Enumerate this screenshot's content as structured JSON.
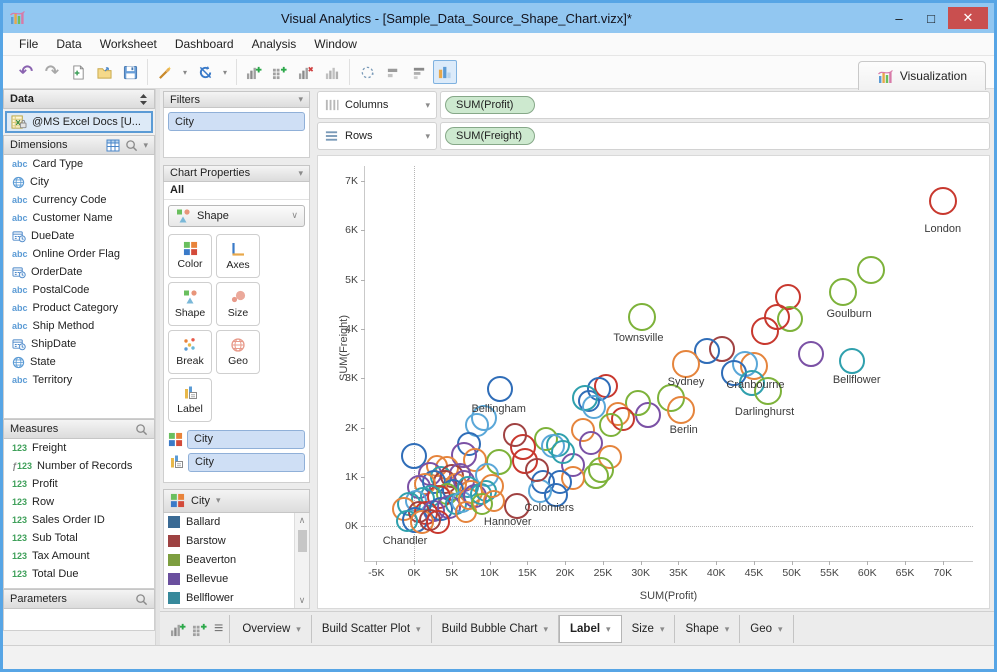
{
  "window": {
    "title": "Visual Analytics - [Sample_Data_Source_Shape_Chart.vizx]*",
    "controls": {
      "minimize": "–",
      "maximize": "□",
      "close": "✕"
    }
  },
  "menu": {
    "items": [
      "File",
      "Data",
      "Worksheet",
      "Dashboard",
      "Analysis",
      "Window"
    ]
  },
  "toolbar": {
    "groups": [
      [
        "undo",
        "redo",
        "new-file",
        "open-folder",
        "save"
      ],
      [
        "wand",
        "dd",
        "refresh",
        "dd"
      ],
      [
        "chart-add",
        "grid-add",
        "chart-remove",
        "chart-plain"
      ],
      [
        "lasso",
        "bars-h",
        "bars-h2",
        "chart-highlight"
      ]
    ],
    "visualization_tab": {
      "label": "Visualization"
    }
  },
  "sidebar": {
    "data_header": "Data",
    "source": {
      "label": "@MS Excel Docs [U..."
    },
    "dimensions": {
      "header": "Dimensions",
      "items": [
        {
          "icon": "abc",
          "label": "Card Type"
        },
        {
          "icon": "globe",
          "label": "City"
        },
        {
          "icon": "abc",
          "label": "Currency Code"
        },
        {
          "icon": "abc",
          "label": "Customer Name"
        },
        {
          "icon": "datetime",
          "label": "DueDate"
        },
        {
          "icon": "abc",
          "label": "Online Order Flag"
        },
        {
          "icon": "datetime",
          "label": "OrderDate"
        },
        {
          "icon": "abc",
          "label": "PostalCode"
        },
        {
          "icon": "abc",
          "label": "Product Category"
        },
        {
          "icon": "abc",
          "label": "Ship Method"
        },
        {
          "icon": "datetime",
          "label": "ShipDate"
        },
        {
          "icon": "globe",
          "label": "State"
        },
        {
          "icon": "abc",
          "label": "Territory"
        }
      ]
    },
    "measures": {
      "header": "Measures",
      "items": [
        {
          "icon": "n123",
          "label": "Freight"
        },
        {
          "icon": "f123",
          "label": "Number of Records"
        },
        {
          "icon": "n123",
          "label": "Profit"
        },
        {
          "icon": "n123",
          "label": "Row"
        },
        {
          "icon": "n123",
          "label": "Sales Order ID"
        },
        {
          "icon": "n123",
          "label": "Sub Total"
        },
        {
          "icon": "n123",
          "label": "Tax Amount"
        },
        {
          "icon": "n123",
          "label": "Total Due"
        }
      ]
    },
    "parameters": {
      "header": "Parameters"
    }
  },
  "panel2": {
    "filters": {
      "header": "Filters",
      "chips": [
        "City"
      ]
    },
    "chart_properties": {
      "header": "Chart Properties",
      "scope": "All",
      "selector": {
        "icon": "shape",
        "label": "Shape"
      },
      "buttons": [
        {
          "icon": "color",
          "label": "Color"
        },
        {
          "icon": "axes",
          "label": "Axes"
        },
        {
          "icon": "shape",
          "label": "Shape"
        },
        {
          "icon": "size",
          "label": "Size"
        },
        {
          "icon": "break",
          "label": "Break"
        },
        {
          "icon": "geo",
          "label": "Geo"
        },
        {
          "icon": "label",
          "label": "Label"
        }
      ],
      "assignments": [
        {
          "icon": "color",
          "chip": "City"
        },
        {
          "icon": "label",
          "chip": "City"
        }
      ]
    },
    "legend": {
      "title": "City",
      "items": [
        {
          "color": "#3a6a94",
          "label": "Ballard"
        },
        {
          "color": "#9e4242",
          "label": "Barstow"
        },
        {
          "color": "#7d9e3f",
          "label": "Beaverton"
        },
        {
          "color": "#6a4f9e",
          "label": "Bellevue"
        },
        {
          "color": "#37899b",
          "label": "Bellflower"
        },
        {
          "color": "#d9813f",
          "label": "Bellingham"
        }
      ]
    }
  },
  "shelves": {
    "columns": {
      "label": "Columns",
      "pill": "SUM(Profit)"
    },
    "rows": {
      "label": "Rows",
      "pill": "SUM(Freight)"
    }
  },
  "chart_data": {
    "type": "scatter",
    "xlabel": "SUM(Profit)",
    "ylabel": "SUM(Freight)",
    "xlim": [
      -6.5,
      74
    ],
    "ylim": [
      -0.7,
      7.3
    ],
    "x_unit": "thousands",
    "y_unit": "thousands",
    "xticks": [
      {
        "v": -5,
        "t": "-5K"
      },
      {
        "v": 0,
        "t": "0K"
      },
      {
        "v": 5,
        "t": "5K"
      },
      {
        "v": 10,
        "t": "10K"
      },
      {
        "v": 15,
        "t": "15K"
      },
      {
        "v": 20,
        "t": "20K"
      },
      {
        "v": 25,
        "t": "25K"
      },
      {
        "v": 30,
        "t": "30K"
      },
      {
        "v": 35,
        "t": "35K"
      },
      {
        "v": 40,
        "t": "40K"
      },
      {
        "v": 45,
        "t": "45K"
      },
      {
        "v": 50,
        "t": "50K"
      },
      {
        "v": 55,
        "t": "55K"
      },
      {
        "v": 60,
        "t": "60K"
      },
      {
        "v": 65,
        "t": "65K"
      },
      {
        "v": 70,
        "t": "70K"
      }
    ],
    "yticks": [
      {
        "v": 0,
        "t": "0K"
      },
      {
        "v": 1,
        "t": "1K"
      },
      {
        "v": 2,
        "t": "2K"
      },
      {
        "v": 3,
        "t": "3K"
      },
      {
        "v": 4,
        "t": "4K"
      },
      {
        "v": 5,
        "t": "5K"
      },
      {
        "v": 6,
        "t": "6K"
      },
      {
        "v": 7,
        "t": "7K"
      }
    ],
    "zerolines": {
      "x": 0,
      "y": 0
    },
    "palette": {
      "b": "#2f6db8",
      "lb": "#5aa7d8",
      "t": "#2fa0ad",
      "g": "#7db23a",
      "o": "#e5843c",
      "r": "#c8382e",
      "dr": "#a04242",
      "p": "#7b51a5"
    },
    "points": [
      [
        70,
        6.6,
        "r",
        14
      ],
      [
        60.5,
        5.2,
        "g",
        14
      ],
      [
        56.8,
        4.75,
        "g",
        14
      ],
      [
        49.5,
        4.65,
        "r",
        13
      ],
      [
        49.8,
        4.2,
        "g",
        13
      ],
      [
        48,
        4.25,
        "r",
        13
      ],
      [
        46.5,
        3.95,
        "r",
        14
      ],
      [
        52.5,
        3.5,
        "p",
        13
      ],
      [
        58,
        3.35,
        "t",
        13
      ],
      [
        45,
        3.25,
        "o",
        14
      ],
      [
        40.8,
        3.6,
        "dr",
        13
      ],
      [
        38.8,
        3.55,
        "b",
        13
      ],
      [
        43.8,
        3.3,
        "lb",
        13
      ],
      [
        42.3,
        3.1,
        "b",
        13
      ],
      [
        44.8,
        2.9,
        "t",
        13
      ],
      [
        46.8,
        2.75,
        "g",
        14
      ],
      [
        36,
        3.3,
        "o",
        14
      ],
      [
        30.2,
        4.25,
        "g",
        14
      ],
      [
        34,
        2.6,
        "g",
        14
      ],
      [
        35.3,
        2.35,
        "o",
        14
      ],
      [
        31,
        2.25,
        "p",
        13
      ],
      [
        29.6,
        2.5,
        "g",
        13
      ],
      [
        25.4,
        2.85,
        "r",
        12
      ],
      [
        24.5,
        2.78,
        "b",
        12
      ],
      [
        23.2,
        2.55,
        "b",
        11
      ],
      [
        22.6,
        2.6,
        "t",
        13
      ],
      [
        23.8,
        2.42,
        "lb",
        12
      ],
      [
        27,
        2.28,
        "o",
        12
      ],
      [
        27.6,
        2.18,
        "r",
        12
      ],
      [
        26.1,
        2.05,
        "g",
        12
      ],
      [
        22.4,
        1.95,
        "o",
        12
      ],
      [
        23.4,
        1.7,
        "p",
        12
      ],
      [
        19,
        1.65,
        "t",
        12
      ],
      [
        26,
        1.4,
        "o",
        12
      ],
      [
        24.8,
        1.15,
        "g",
        13
      ],
      [
        24.1,
        1.03,
        "g",
        13
      ],
      [
        21.1,
        1.25,
        "p",
        12
      ],
      [
        21,
        0.98,
        "o",
        12
      ],
      [
        19.3,
        0.9,
        "b",
        12
      ],
      [
        17.5,
        1.78,
        "g",
        12
      ],
      [
        18.4,
        1.63,
        "lb",
        12
      ],
      [
        19.7,
        1.5,
        "t",
        12
      ],
      [
        17.1,
        0.9,
        "b",
        12
      ],
      [
        16.7,
        0.72,
        "lb",
        12
      ],
      [
        18.8,
        0.63,
        "b",
        12
      ],
      [
        14.4,
        1.6,
        "r",
        13
      ],
      [
        14.7,
        1.32,
        "r",
        13
      ],
      [
        16.3,
        1.15,
        "dr",
        12
      ],
      [
        13.3,
        1.85,
        "dr",
        12
      ],
      [
        11.2,
        1.3,
        "g",
        13
      ],
      [
        13.6,
        0.42,
        "dr",
        13
      ],
      [
        11.4,
        2.78,
        "b",
        13
      ],
      [
        9.2,
        2.2,
        "lb",
        13
      ],
      [
        8.3,
        2.06,
        "lb",
        12
      ],
      [
        7.3,
        1.67,
        "b",
        12
      ],
      [
        6.6,
        1.45,
        "p",
        13
      ],
      [
        0,
        1.42,
        "b",
        13
      ],
      [
        8,
        1.35,
        "o",
        12
      ],
      [
        9.7,
        1.05,
        "lb",
        12
      ],
      [
        4.4,
        1.18,
        "o",
        12
      ],
      [
        3,
        1.22,
        "o",
        11
      ],
      [
        2.1,
        1.06,
        "p",
        12
      ],
      [
        3.6,
        1,
        "t",
        11
      ],
      [
        5,
        1.02,
        "dr",
        12
      ],
      [
        6.1,
        1.06,
        "p",
        11
      ],
      [
        4.1,
        0.9,
        "dr",
        12
      ],
      [
        2.6,
        0.9,
        "b",
        12
      ],
      [
        1.5,
        0.85,
        "o",
        11
      ],
      [
        0.6,
        0.8,
        "p",
        12
      ],
      [
        5.6,
        0.86,
        "o",
        11
      ],
      [
        6.6,
        0.92,
        "p",
        11
      ],
      [
        7.1,
        0.8,
        "t",
        11
      ],
      [
        7.6,
        0.7,
        "o",
        12
      ],
      [
        5.1,
        0.73,
        "b",
        11
      ],
      [
        4.3,
        0.66,
        "g",
        11
      ],
      [
        3.3,
        0.6,
        "r",
        12
      ],
      [
        2.3,
        0.62,
        "t",
        11
      ],
      [
        1.2,
        0.56,
        "t",
        12
      ],
      [
        0.2,
        0.52,
        "lb",
        11
      ],
      [
        -0.7,
        0.45,
        "t",
        12
      ],
      [
        -1.4,
        0.36,
        "o",
        12
      ],
      [
        0.6,
        0.3,
        "dr",
        11
      ],
      [
        1.6,
        0.28,
        "r",
        12
      ],
      [
        2.6,
        0.32,
        "p",
        11
      ],
      [
        3.6,
        0.36,
        "b",
        12
      ],
      [
        4.6,
        0.4,
        "p",
        12
      ],
      [
        5.6,
        0.46,
        "t",
        11
      ],
      [
        6.4,
        0.5,
        "lb",
        11
      ],
      [
        7.3,
        0.56,
        "o",
        11
      ],
      [
        8.1,
        0.62,
        "p",
        12
      ],
      [
        8.9,
        0.66,
        "t",
        11
      ],
      [
        0.1,
        0.14,
        "b",
        13
      ],
      [
        -1,
        0.12,
        "t",
        11
      ],
      [
        1,
        0.1,
        "o",
        12
      ],
      [
        2.1,
        0.14,
        "dr",
        11
      ],
      [
        3.1,
        0.08,
        "r",
        12
      ],
      [
        6.9,
        0.3,
        "o",
        11
      ],
      [
        9.5,
        0.72,
        "t",
        11
      ],
      [
        10.3,
        0.82,
        "o",
        12
      ],
      [
        9,
        0.46,
        "g",
        11
      ],
      [
        10.6,
        0.52,
        "o",
        11
      ]
    ],
    "annotations": [
      {
        "text": "London",
        "x": 70,
        "y": 6.02
      },
      {
        "text": "Goulburn",
        "x": 57.6,
        "y": 4.3
      },
      {
        "text": "Townsville",
        "x": 29.7,
        "y": 3.82
      },
      {
        "text": "Sydney",
        "x": 36,
        "y": 2.92
      },
      {
        "text": "Cranbourne",
        "x": 45.2,
        "y": 2.86
      },
      {
        "text": "Bellflower",
        "x": 58.6,
        "y": 2.97
      },
      {
        "text": "Darlinghurst",
        "x": 46.4,
        "y": 2.32
      },
      {
        "text": "Berlin",
        "x": 35.7,
        "y": 1.96
      },
      {
        "text": "Bellingham",
        "x": 11.2,
        "y": 2.38
      },
      {
        "text": "Colomiers",
        "x": 17.9,
        "y": 0.38
      },
      {
        "text": "Hannover",
        "x": 12.4,
        "y": 0.1
      },
      {
        "text": "Chandler",
        "x": -1.2,
        "y": -0.3
      }
    ]
  },
  "bottom_tabs": {
    "icons": [
      "chart-add",
      "grid-add",
      "list"
    ],
    "tabs": [
      {
        "label": "Overview",
        "active": false
      },
      {
        "label": "Build Scatter Plot",
        "active": false
      },
      {
        "label": "Build Bubble Chart",
        "active": false
      },
      {
        "label": "Label",
        "active": true
      },
      {
        "label": "Size",
        "active": false
      },
      {
        "label": "Shape",
        "active": false
      },
      {
        "label": "Geo",
        "active": false
      }
    ]
  }
}
